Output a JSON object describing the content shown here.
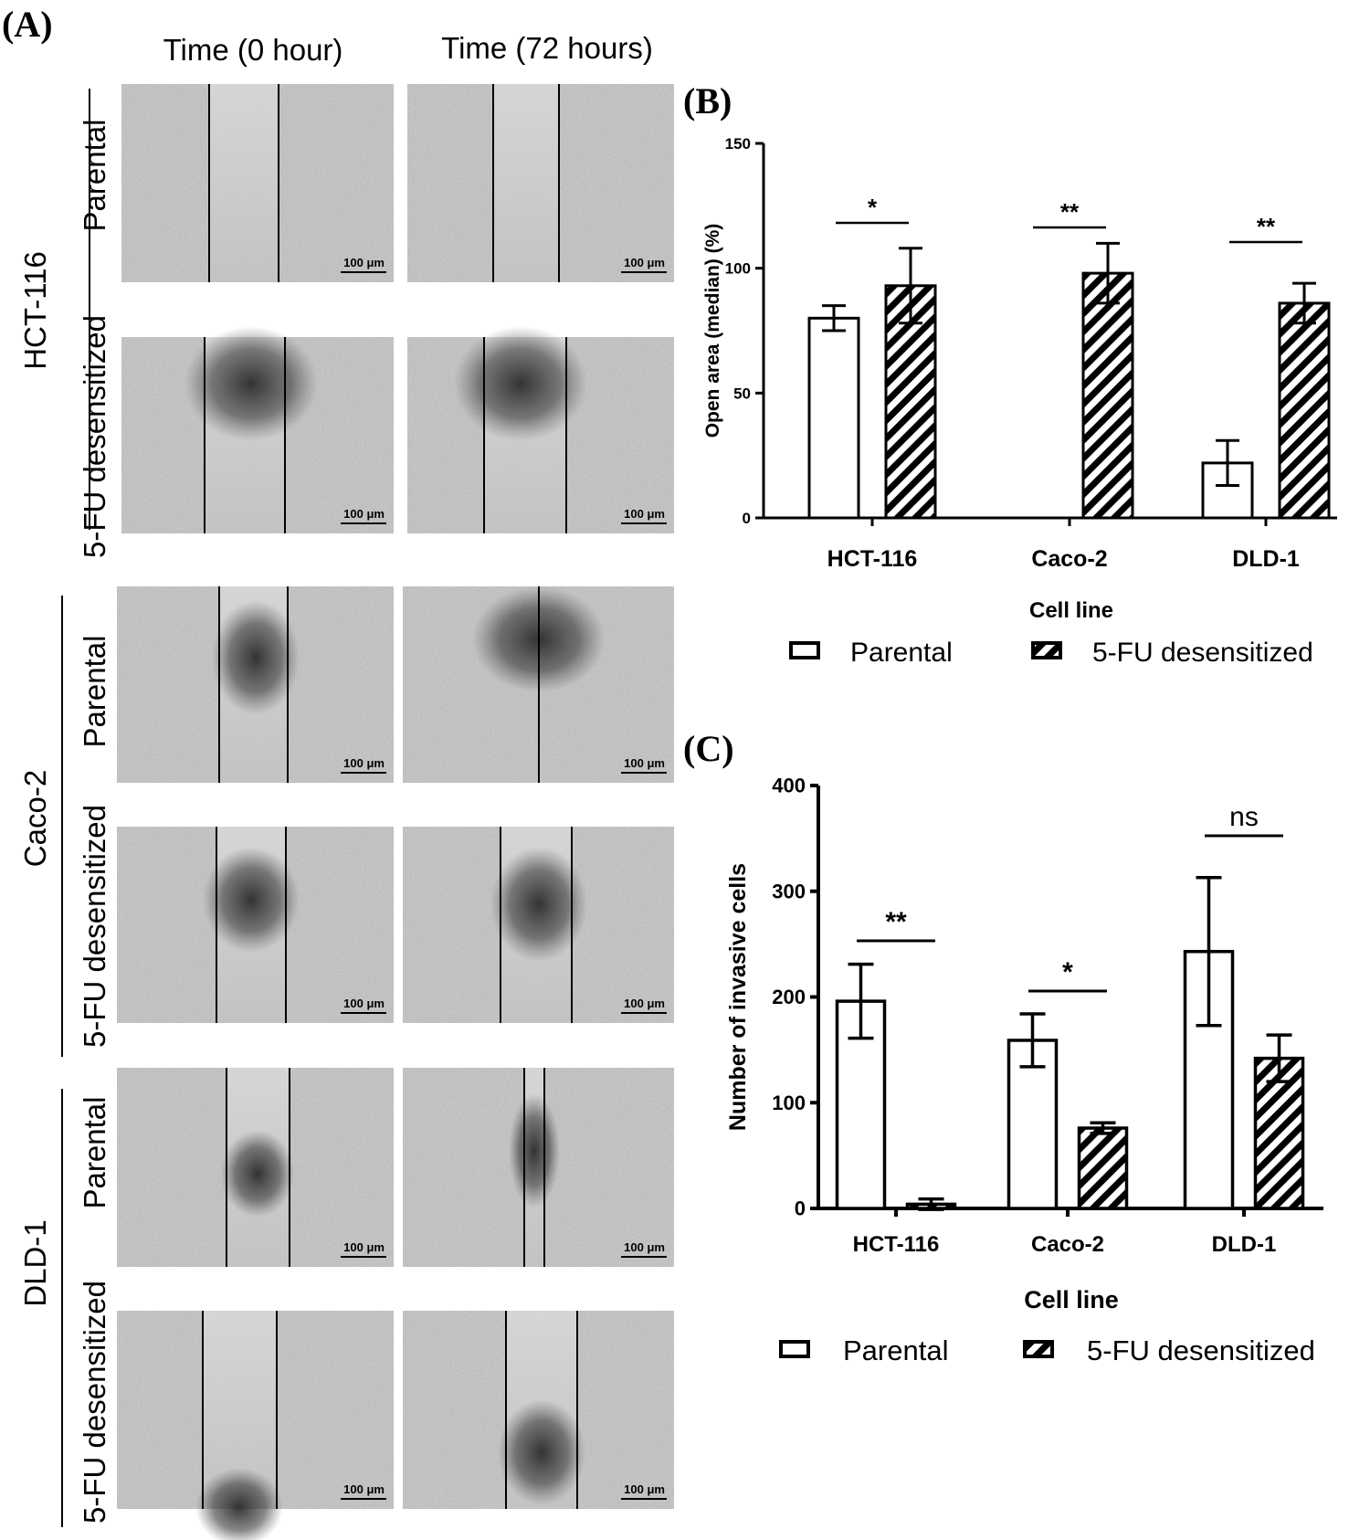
{
  "figure": {
    "panelA": {
      "letter": "(A)",
      "columns": [
        "Time (0 hour)",
        "Time (72 hours)"
      ],
      "cell_lines": [
        {
          "name": "HCT-116",
          "conditions": [
            "Parental",
            "5-FU desensitized"
          ]
        },
        {
          "name": "Caco-2",
          "conditions": [
            "Parental",
            "5-FU desensitized"
          ]
        },
        {
          "name": "DLD-1",
          "conditions": [
            "Parental",
            "5-FU desensitized"
          ]
        }
      ],
      "scale_bar": "100 μm"
    },
    "panelB": {
      "letter": "(B)"
    },
    "panelC": {
      "letter": "(C)"
    }
  },
  "colors": {
    "bar_stroke": "#000000",
    "bar_fill": "#ffffff",
    "micro_bg": "#c9c9c7"
  },
  "chart_data": [
    {
      "id": "B",
      "type": "bar",
      "title": "",
      "xlabel": "Cell line",
      "ylabel": "Open area (median) (%)",
      "ylim": [
        0,
        150
      ],
      "yticks": [
        0,
        50,
        100,
        150
      ],
      "categories": [
        "HCT-116",
        "Caco-2",
        "DLD-1"
      ],
      "series": [
        {
          "name": "Parental",
          "pattern": "open",
          "values": [
            80,
            0,
            22
          ],
          "errors": [
            5,
            0,
            9
          ]
        },
        {
          "name": "5-FU desensitized",
          "pattern": "hatched",
          "values": [
            93,
            98,
            86
          ],
          "errors": [
            15,
            12,
            8
          ]
        }
      ],
      "significance": [
        "*",
        "**",
        "**"
      ],
      "legend_position": "bottom"
    },
    {
      "id": "C",
      "type": "bar",
      "title": "",
      "xlabel": "Cell line",
      "ylabel": "Number of invasive cells",
      "ylim": [
        0,
        400
      ],
      "yticks": [
        0,
        100,
        200,
        300,
        400
      ],
      "categories": [
        "HCT-116",
        "Caco-2",
        "DLD-1"
      ],
      "series": [
        {
          "name": "Parental",
          "pattern": "open",
          "values": [
            196,
            159,
            243
          ],
          "errors": [
            35,
            25,
            70
          ]
        },
        {
          "name": "5-FU desensitized",
          "pattern": "hatched",
          "values": [
            4,
            76,
            142
          ],
          "errors": [
            5,
            5,
            22
          ]
        }
      ],
      "significance": [
        "**",
        "*",
        "ns"
      ],
      "legend_position": "bottom"
    }
  ]
}
